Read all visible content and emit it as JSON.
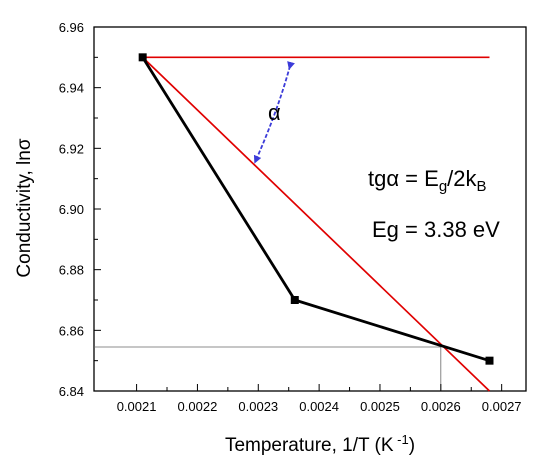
{
  "chart_data": {
    "type": "line",
    "xlabel_main": "Temperature, 1/T (K",
    "xlabel_sup": " -1",
    "xlabel_end": ")",
    "ylabel": "Conductivity, lnσ",
    "xlim": [
      0.00203,
      0.00274
    ],
    "ylim": [
      6.84,
      6.96
    ],
    "x_ticks": [
      "0.0021",
      "0.0022",
      "0.0023",
      "0.0024",
      "0.0025",
      "0.0026",
      "0.0027"
    ],
    "y_ticks": [
      "6.84",
      "6.86",
      "6.88",
      "6.90",
      "6.92",
      "6.94",
      "6.96"
    ],
    "series": [
      {
        "color": "#000000",
        "marker": "square",
        "x": [
          0.00211,
          0.00236,
          0.00268
        ],
        "y": [
          6.95,
          6.87,
          6.85
        ]
      }
    ],
    "reference_lines": [
      {
        "color": "#e00000",
        "x": [
          0.00211,
          0.00268
        ],
        "y": [
          6.95,
          6.95
        ]
      },
      {
        "color": "#e00000",
        "x": [
          0.00211,
          0.00268
        ],
        "y": [
          6.95,
          6.84
        ]
      }
    ],
    "guide_point": {
      "x": 0.0026,
      "y": 6.8545,
      "color": "#666666"
    },
    "annotations": {
      "alpha": "α",
      "formula_main": "tgα = E",
      "formula_sub1": "g",
      "formula_mid": "/2k",
      "formula_sub2": "B",
      "eg": "Eg = 3.38 eV"
    },
    "arrow_color": "#3b3bd9",
    "grid": false
  }
}
